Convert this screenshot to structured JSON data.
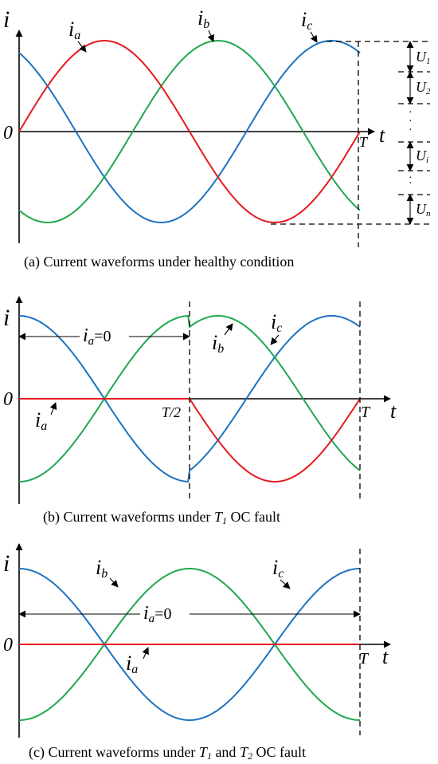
{
  "colors": {
    "ia": "#e8191f",
    "ib": "#1fa84f",
    "ic": "#1e73be",
    "axis": "#000000"
  },
  "panels": [
    {
      "id": "a",
      "caption": "(a) Current waveforms under healthy condition",
      "axis_labels": {
        "y": "i",
        "x": "t",
        "origin": "0",
        "period": "T"
      },
      "curve_labels": {
        "ia": "a",
        "ib": "b",
        "ic": "c"
      },
      "levels": [
        "1",
        "2",
        "i",
        "n"
      ]
    },
    {
      "id": "b",
      "caption_pre": "(b) Current waveforms under ",
      "caption_t": "T",
      "caption_sub": "1",
      "caption_post": " OC fault",
      "axis_labels": {
        "y": "i",
        "x": "t",
        "origin": "0",
        "period": "T",
        "half": "T/2"
      },
      "curve_labels": {
        "ia": "a",
        "ib": "b",
        "ic": "c"
      },
      "zero_note": "=0"
    },
    {
      "id": "c",
      "caption_pre": "(c) Current waveforms under ",
      "caption_t1": "T",
      "caption_sub1": "1",
      "caption_mid": " and ",
      "caption_t2": "T",
      "caption_sub2": "2",
      "caption_post": " OC fault",
      "axis_labels": {
        "y": "i",
        "x": "t",
        "origin": "0",
        "period": "T"
      },
      "curve_labels": {
        "ia": "a",
        "ib": "b",
        "ic": "c"
      },
      "zero_note": "=0"
    }
  ]
}
